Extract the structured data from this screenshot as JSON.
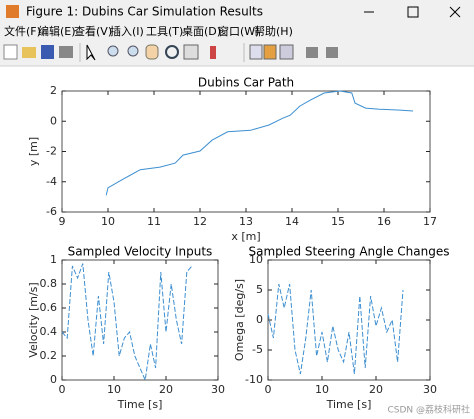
{
  "window": {
    "title": "Figure 1: Dubins Car Simulation Results"
  },
  "menu": [
    "文件(F)",
    "编辑(E)",
    "查看(V)",
    "插入(I)",
    "工具(T)",
    "桌面(D)",
    "窗口(W)",
    "帮助(H)"
  ],
  "watermark": "CSDN @荔枝科研社",
  "chart_data": [
    {
      "type": "line",
      "title": "Dubins Car Path",
      "xlabel": "x [m]",
      "ylabel": "y [m]",
      "x": [
        9.96,
        10.0,
        10.37,
        10.7,
        11.13,
        11.46,
        11.63,
        12.0,
        12.26,
        12.6,
        13.1,
        13.5,
        13.8,
        13.96,
        14.17,
        14.4,
        14.7,
        15.04,
        15.3,
        15.37,
        15.6,
        15.9,
        16.35,
        16.63
      ],
      "series": [
        {
          "values": [
            -4.89,
            -4.4,
            -3.76,
            -3.2,
            -3.03,
            -2.77,
            -2.24,
            -1.97,
            -1.25,
            -0.7,
            -0.6,
            -0.25,
            0.2,
            0.4,
            1.0,
            1.4,
            1.87,
            2.0,
            1.87,
            1.2,
            0.87,
            0.8,
            0.74,
            0.68
          ],
          "color": "#3d8fd1"
        }
      ],
      "xlim": [
        9,
        17
      ],
      "xticks": [
        9,
        10,
        11,
        12,
        13,
        14,
        15,
        16,
        17
      ],
      "ylim": [
        -6,
        2
      ],
      "yticks": [
        -6,
        -4,
        -2,
        0,
        2
      ],
      "line_style": "solid"
    },
    {
      "type": "line",
      "title": "Sampled Velocity Inputs",
      "xlabel": "Time [s]",
      "ylabel": "Velocity [m/s]",
      "x": [
        0,
        1,
        2,
        3,
        4,
        5,
        6,
        7,
        8,
        9,
        10,
        11,
        12,
        13,
        14,
        15,
        16,
        17,
        18,
        19,
        20,
        21,
        22,
        23,
        24,
        25
      ],
      "series": [
        {
          "values": [
            0.4,
            0.35,
            0.95,
            0.85,
            0.97,
            0.5,
            0.2,
            0.7,
            0.3,
            0.9,
            0.65,
            0.2,
            0.35,
            0.4,
            0.2,
            0.1,
            0.0,
            0.3,
            0.1,
            0.9,
            0.4,
            0.8,
            0.5,
            0.3,
            0.9,
            0.95
          ],
          "color": "#3d8fd1"
        }
      ],
      "xlim": [
        0,
        30
      ],
      "xticks": [
        0,
        10,
        20,
        30
      ],
      "ylim": [
        0,
        1
      ],
      "yticks": [
        0,
        0.2,
        0.4,
        0.6,
        0.8,
        1
      ],
      "line_style": "dashed"
    },
    {
      "type": "line",
      "title": "Sampled Steering Angle Changes",
      "xlabel": "Time [s]",
      "ylabel": "Omega [deg/s]",
      "x": [
        0,
        1,
        2,
        3,
        4,
        5,
        6,
        7,
        8,
        9,
        10,
        11,
        12,
        13,
        14,
        15,
        16,
        17,
        18,
        19,
        20,
        21,
        22,
        23,
        24,
        25
      ],
      "series": [
        {
          "values": [
            1,
            -3,
            6,
            2,
            6,
            -5,
            -9,
            -3,
            5,
            -6,
            -2,
            -7,
            -1,
            -5,
            -7,
            -2,
            -9,
            4,
            -8,
            4,
            -1,
            2,
            -2,
            0,
            -7,
            5
          ],
          "color": "#3d8fd1"
        }
      ],
      "xlim": [
        0,
        30
      ],
      "xticks": [
        0,
        10,
        20,
        30
      ],
      "ylim": [
        -10,
        10
      ],
      "yticks": [
        -10,
        -5,
        0,
        5,
        10
      ],
      "line_style": "dashed"
    }
  ]
}
